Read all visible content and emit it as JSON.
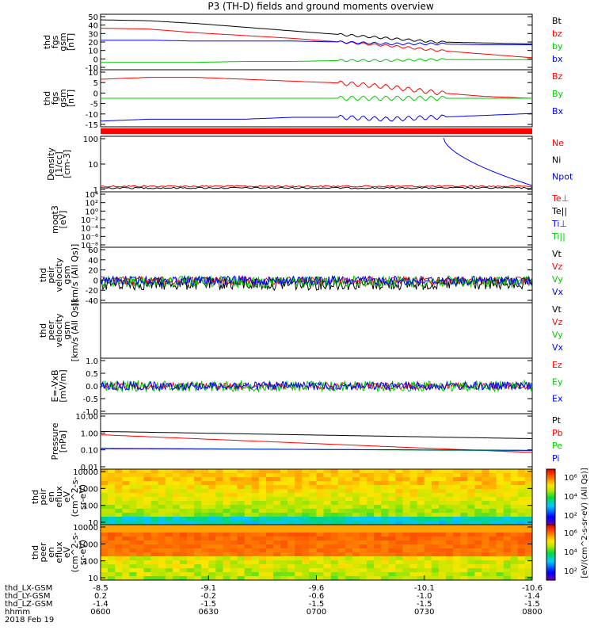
{
  "chart_data": {
    "type": "line",
    "title": "P3 (TH-D) fields and ground moments overview",
    "x_axis": {
      "label_rows": [
        "thd_LX-GSM",
        "thd_LY-GSM",
        "thd_LZ-GSM",
        "hhmm"
      ],
      "date": "2018 Feb 19",
      "ticks": [
        {
          "lx": "-8.5",
          "ly": "0.2",
          "lz": "-1.4",
          "hhmm": "0600"
        },
        {
          "lx": "-9.1",
          "ly": "-0.2",
          "lz": "-1.5",
          "hhmm": "0630"
        },
        {
          "lx": "-9.6",
          "ly": "-0.6",
          "lz": "-1.5",
          "hhmm": "0700"
        },
        {
          "lx": "-10.1",
          "ly": "-1.0",
          "lz": "-1.5",
          "hhmm": "0730"
        },
        {
          "lx": "-10.6",
          "ly": "-1.4",
          "lz": "-1.5",
          "hhmm": "0800"
        }
      ]
    },
    "panels": [
      {
        "id": "fgs_gsm_mag",
        "ylabel": [
          "thd",
          "fgs",
          "gsm",
          "[nT]"
        ],
        "ylim": [
          -10,
          50
        ],
        "yticks": [
          "50",
          "40",
          "30",
          "20",
          "10",
          "0",
          "-10"
        ],
        "series": [
          {
            "name": "Bt",
            "color": "#000000",
            "values": [
              44,
              43,
              40,
              36,
              32,
              28,
              24,
              20,
              19,
              18
            ]
          },
          {
            "name": "bz",
            "color": "#ff0000",
            "values": [
              35,
              34,
              30,
              27,
              24,
              20,
              16,
              11,
              7,
              3
            ]
          },
          {
            "name": "by",
            "color": "#00cc00",
            "values": [
              -2,
              -2,
              -2,
              -1,
              -1,
              0,
              0,
              1,
              1,
              1
            ]
          },
          {
            "name": "bx",
            "color": "#0000ff",
            "values": [
              22,
              22,
              21,
              21,
              21,
              20,
              18,
              18,
              17,
              17
            ]
          }
        ]
      },
      {
        "id": "fgs_gsm",
        "ylabel": [
          "thd",
          "fgs",
          "gsm",
          "[nT]"
        ],
        "ylim": [
          -17,
          13
        ],
        "yticks": [
          "10",
          "5",
          "0",
          "-5",
          "-10",
          "-15"
        ],
        "series": [
          {
            "name": "Bz",
            "color": "#ff0000",
            "values": [
              8,
              9,
              9,
              8,
              7,
              6,
              4,
              1,
              -1,
              -2
            ]
          },
          {
            "name": "By",
            "color": "#00cc00",
            "values": [
              -2,
              -2,
              -2,
              -2,
              -2,
              -2,
              -2,
              -2,
              -2,
              -2
            ]
          },
          {
            "name": "Bx",
            "color": "#0000ff",
            "values": [
              -14,
              -13,
              -13,
              -13,
              -12,
              -12,
              -13,
              -12,
              -11,
              -10
            ]
          }
        ]
      },
      {
        "id": "density",
        "ylabel": [
          "Density",
          "[1/cc]",
          "[cm-3]"
        ],
        "scale": "log",
        "yticks": [
          "100",
          "10",
          "1"
        ],
        "series": [
          {
            "name": "Ne",
            "color": "#ff0000"
          },
          {
            "name": "Ni",
            "color": "#000000"
          },
          {
            "name": "Npot",
            "color": "#0000ff"
          }
        ]
      },
      {
        "id": "temperature",
        "ylabel": [
          "moqt3",
          "[eV]"
        ],
        "scale": "log",
        "yticks": [
          "10⁴",
          "10²",
          "10⁰",
          "10⁻²",
          "10⁻⁴",
          "10⁻⁶",
          "10⁻⁸"
        ],
        "series": [
          {
            "name": "Te⊥",
            "color": "#ff0000"
          },
          {
            "name": "Te||",
            "color": "#000000"
          },
          {
            "name": "Ti⊥",
            "color": "#0000ff"
          },
          {
            "name": "Ti||",
            "color": "#00cc00"
          }
        ]
      },
      {
        "id": "peir_velocity",
        "ylabel": [
          "thd",
          "peir",
          "velocity",
          "gsm",
          "[km/s (All Qs)]"
        ],
        "ylim": [
          -40,
          60
        ],
        "yticks": [
          "60",
          "40",
          "20",
          "0",
          "-20",
          "-40"
        ],
        "series": [
          {
            "name": "Vt",
            "color": "#000000"
          },
          {
            "name": "Vz",
            "color": "#ff0000"
          },
          {
            "name": "Vy",
            "color": "#00cc00"
          },
          {
            "name": "Vx",
            "color": "#0000ff"
          }
        ]
      },
      {
        "id": "peer_velocity",
        "ylabel": [
          "thd",
          "peer",
          "velocity",
          "gsm",
          "[km/s (All Qs)]"
        ],
        "yticks": [],
        "series": [
          {
            "name": "Vt",
            "color": "#000000"
          },
          {
            "name": "Vz",
            "color": "#ff0000"
          },
          {
            "name": "Vy",
            "color": "#00cc00"
          },
          {
            "name": "Vx",
            "color": "#0000ff"
          }
        ]
      },
      {
        "id": "efield",
        "ylabel": [
          "E=-VxB",
          "[mV/m]"
        ],
        "ylim": [
          -1.0,
          1.0
        ],
        "yticks": [
          "1.0",
          "0.5",
          "0.0",
          "-0.5",
          "-1.0"
        ],
        "series": [
          {
            "name": "Ez",
            "color": "#ff0000"
          },
          {
            "name": "Ey",
            "color": "#00cc00"
          },
          {
            "name": "Ex",
            "color": "#0000ff"
          }
        ]
      },
      {
        "id": "pressure",
        "ylabel": [
          "Pressure",
          "[nPa]"
        ],
        "scale": "log",
        "yticks": [
          "10.00",
          "1.00",
          "0.10",
          "0.01"
        ],
        "series": [
          {
            "name": "Pt",
            "color": "#000000"
          },
          {
            "name": "Pb",
            "color": "#ff0000"
          },
          {
            "name": "Pe",
            "color": "#00cc00"
          },
          {
            "name": "Pi",
            "color": "#0000ff"
          }
        ]
      },
      {
        "id": "peir_eflux",
        "type": "heatmap",
        "ylabel": [
          "thd",
          "peir",
          "en",
          "eflux",
          "eV",
          "(cm^2-s-",
          "sr-eV)"
        ],
        "scale": "log",
        "yticks": [
          "10000",
          "1000",
          "100",
          "10"
        ]
      },
      {
        "id": "peer_eflux",
        "type": "heatmap",
        "ylabel": [
          "thd",
          "peer",
          "en",
          "eflux",
          "eV",
          "(cm^2-s-",
          "sr-eV)"
        ],
        "scale": "log",
        "yticks": [
          "10000",
          "1000",
          "100",
          "10"
        ]
      }
    ],
    "colorbar": {
      "label": "[eV/(cm^2-s-sr-eV) (All Qs)]",
      "ticks_upper": [
        "10⁶",
        "10⁴",
        "10²"
      ],
      "ticks_lower": [
        "10⁶",
        "10⁴",
        "10²"
      ]
    }
  }
}
